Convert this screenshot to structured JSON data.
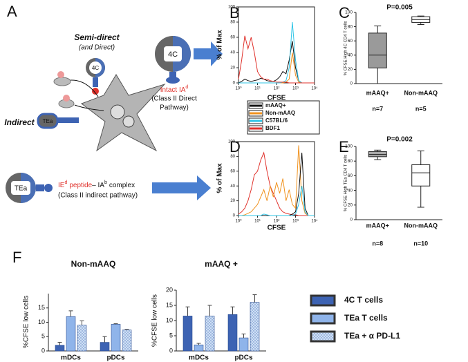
{
  "diagram": {
    "panel": "A",
    "semi_direct": "Semi-direct",
    "and_direct": "(and Direct)",
    "cell_4c_small": "4C",
    "indirect": "Indirect",
    "cell_tea_small": "TEa",
    "cell_4c_large": "4C",
    "direct_label": {
      "main": "Intact IA",
      "sup": "d",
      "line2": "(Class II Direct",
      "line3": "Pathway)"
    },
    "cell_tea_large": "TEa",
    "indirect_label": {
      "part1": "IE",
      "sup1": "d",
      "part2": "peptide",
      "part3": "– IA",
      "sup2": "b",
      "part4": "complex",
      "line2": "(Class II indirect pathway)"
    }
  },
  "chart_data": [
    {
      "type": "hist",
      "panel": "B",
      "y_label": "% of Max",
      "x_label": "CFSE",
      "log_x": true,
      "legend": true,
      "x": [
        1,
        1.47,
        2.15,
        3.16,
        4.64,
        6.81,
        10,
        14.7,
        21.5,
        31.6,
        46.4,
        68.1,
        100,
        147,
        215,
        316,
        464,
        681,
        1000,
        1468,
        2154,
        3162,
        4642,
        6813,
        10000
      ],
      "xlim": [
        1,
        10000
      ],
      "xticks": [
        {
          "value": 1,
          "label": "10⁰"
        },
        {
          "value": 10,
          "label": "10¹"
        },
        {
          "value": 100,
          "label": "10²"
        },
        {
          "value": 1000,
          "label": "10³"
        },
        {
          "value": 10000,
          "label": "10⁴"
        }
      ],
      "ylim": [
        0,
        100
      ],
      "yticks": [
        0,
        20,
        40,
        60,
        80,
        100
      ],
      "series": [
        {
          "name": "mAAQ+",
          "color": "#111111",
          "values": [
            0,
            2,
            5,
            3,
            2,
            3,
            4,
            6,
            5,
            3,
            2,
            2,
            4,
            8,
            15,
            12,
            30,
            55,
            20,
            3,
            0,
            0,
            0,
            0,
            0
          ]
        },
        {
          "name": "Non-mAAQ",
          "color": "#f0921e",
          "values": [
            0,
            0,
            0,
            0,
            0,
            0,
            0,
            0,
            0,
            0,
            0,
            0,
            0,
            0,
            0,
            1,
            5,
            40,
            10,
            1,
            0,
            0,
            0,
            0,
            0
          ]
        },
        {
          "name": "C57BL/6",
          "color": "#2ec4e6",
          "values": [
            0,
            0,
            0,
            0,
            0,
            0,
            0,
            0,
            0,
            0,
            0,
            0,
            0,
            0,
            1,
            3,
            20,
            80,
            30,
            3,
            0,
            0,
            0,
            0,
            0
          ]
        },
        {
          "name": "BDF1",
          "color": "#e0312b",
          "values": [
            5,
            30,
            62,
            45,
            60,
            40,
            15,
            8,
            5,
            5,
            3,
            2,
            1,
            1,
            1,
            1,
            0,
            0,
            0,
            0,
            0,
            0,
            0,
            0,
            0
          ]
        }
      ]
    },
    {
      "type": "hist",
      "panel": "D",
      "y_label": "% of Max",
      "x_label": "CFSE",
      "log_x": true,
      "x": [
        1,
        1.47,
        2.15,
        3.16,
        4.64,
        6.81,
        10,
        14.7,
        21.5,
        31.6,
        46.4,
        68.1,
        100,
        147,
        215,
        316,
        464,
        681,
        1000,
        1468,
        2154,
        3162,
        4642,
        6813,
        10000
      ],
      "xlim": [
        1,
        10000
      ],
      "xticks": [
        {
          "value": 1,
          "label": "10⁰"
        },
        {
          "value": 10,
          "label": "10¹"
        },
        {
          "value": 100,
          "label": "10²"
        },
        {
          "value": 1000,
          "label": "10³"
        },
        {
          "value": 10000,
          "label": "10⁴"
        }
      ],
      "ylim": [
        0,
        100
      ],
      "yticks": [
        0,
        20,
        40,
        60,
        80,
        100
      ],
      "series": [
        {
          "color": "#e0312b",
          "values": [
            2,
            5,
            10,
            20,
            35,
            55,
            60,
            75,
            85,
            60,
            40,
            30,
            20,
            10,
            5,
            3,
            2,
            1,
            1,
            0,
            0,
            0,
            0,
            0,
            0
          ]
        },
        {
          "color": "#f0921e",
          "values": [
            0,
            0,
            1,
            3,
            5,
            10,
            15,
            25,
            35,
            20,
            40,
            25,
            45,
            30,
            50,
            20,
            35,
            15,
            10,
            95,
            20,
            3,
            0,
            0,
            0
          ]
        },
        {
          "color": "#111111",
          "values": [
            0,
            0,
            0,
            0,
            0,
            0,
            0,
            0,
            0,
            0,
            0,
            0,
            0,
            0,
            0,
            0,
            0,
            2,
            5,
            30,
            85,
            10,
            0,
            0,
            0
          ]
        },
        {
          "color": "#2ec4e6",
          "values": [
            0,
            0,
            0,
            0,
            0,
            0,
            0,
            0,
            2,
            1,
            0,
            0,
            0,
            0,
            0,
            0,
            0,
            0,
            2,
            15,
            40,
            5,
            0,
            0,
            0
          ]
        }
      ]
    },
    {
      "type": "box",
      "panel": "C",
      "y_label": "% CFSE High 4C CD4 T cells",
      "annotation": "P=0.005",
      "ylim": [
        0,
        100
      ],
      "yticks": [
        0,
        20,
        40,
        60,
        80,
        100
      ],
      "categories": [
        "mAAQ+",
        "Non-mAAQ"
      ],
      "n_labels": [
        "n=7",
        "n=5"
      ],
      "colors": [
        "#9a9a9a",
        "#ffffff"
      ],
      "boxes": [
        {
          "min": 0,
          "q1": 22,
          "median": 40,
          "q3": 71,
          "max": 81
        },
        {
          "min": 83,
          "q1": 86,
          "median": 90,
          "q3": 94,
          "max": 95
        }
      ]
    },
    {
      "type": "box",
      "panel": "E",
      "y_label": "% CFSE High TEa CD4 T cells",
      "annotation": "P=0.002",
      "ylim": [
        0,
        100
      ],
      "yticks": [
        0,
        20,
        40,
        60,
        80,
        100
      ],
      "categories": [
        "mAAQ+",
        "Non-mAAQ"
      ],
      "n_labels": [
        "n=8",
        "n=10"
      ],
      "colors": [
        "#a8a8a8",
        "#ffffff"
      ],
      "boxes": [
        {
          "min": 82,
          "q1": 86,
          "median": 89,
          "q3": 93,
          "max": 95
        },
        {
          "min": 17,
          "q1": 46,
          "median": 64,
          "q3": 75,
          "max": 94
        }
      ]
    },
    {
      "type": "bar",
      "panel": "F",
      "title": "Non-mAAQ",
      "y_label": "%CFSE low cells",
      "ylim": [
        0,
        20
      ],
      "yticks": [
        0,
        5,
        10,
        15
      ],
      "categories": [
        "mDCs",
        "pDCs"
      ],
      "series": [
        {
          "color": "#3d63b3",
          "values": [
            2,
            3
          ],
          "errors": [
            1,
            2
          ]
        },
        {
          "color": "#8fb4ea",
          "values": [
            12,
            9.3
          ],
          "errors": [
            2,
            0.2
          ]
        },
        {
          "color": "#cfe0f5",
          "hatched": true,
          "values": [
            9,
            7.3
          ],
          "errors": [
            1.5,
            0.2
          ]
        }
      ]
    },
    {
      "type": "bar",
      "title": "mAAQ +",
      "y_label": "%CFSE low cells",
      "legend": true,
      "ylim": [
        0,
        20
      ],
      "yticks": [
        0,
        5,
        10,
        15,
        20
      ],
      "categories": [
        "mDCs",
        "pDCs"
      ],
      "series": [
        {
          "name": "4C T cells",
          "color": "#3d63b3",
          "values": [
            11.5,
            12
          ],
          "errors": [
            3,
            2.5
          ]
        },
        {
          "name": "TEa T cells",
          "color": "#8fb4ea",
          "values": [
            2,
            4.3
          ],
          "errors": [
            0.5,
            1.3
          ]
        },
        {
          "name": "TEa + α PD-L1",
          "color": "#cfe0f5",
          "hatched": true,
          "values": [
            11.5,
            16
          ],
          "errors": [
            3.5,
            2.5
          ]
        }
      ]
    }
  ]
}
